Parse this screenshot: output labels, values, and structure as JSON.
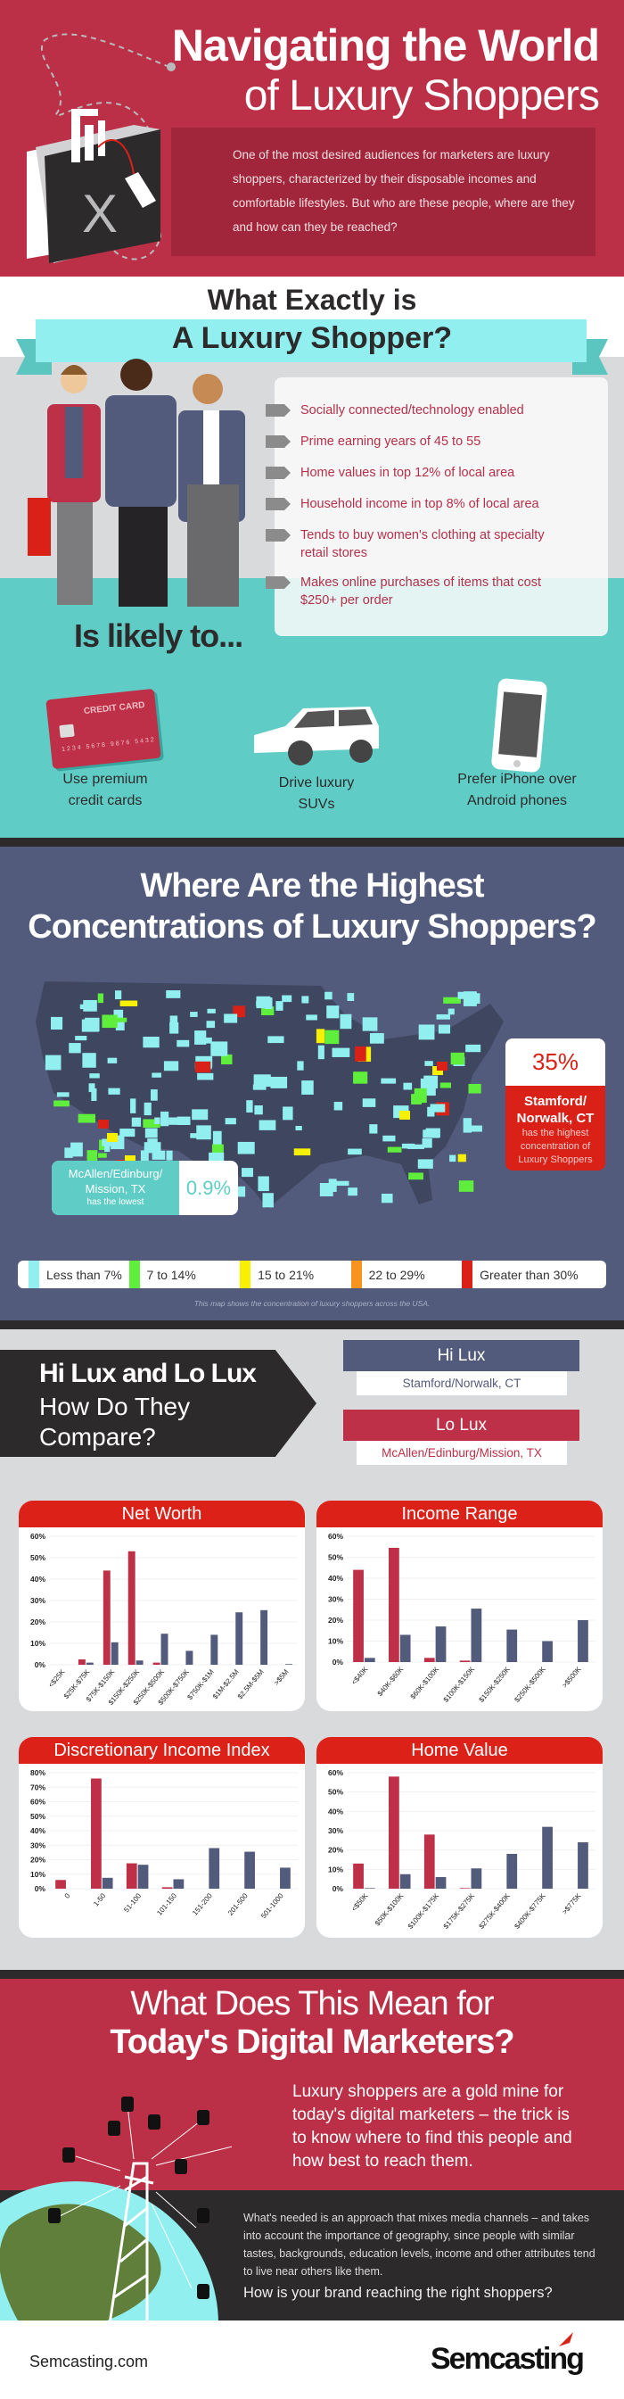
{
  "header": {
    "title_line1": "Navigating the World",
    "title_line2": "of Luxury Shoppers",
    "intro": "One of the most desired audiences for marketers are luxury shoppers, characterized by their disposable incomes and comfortable lifestyles. But who are these people, where are they and how can they be reached?",
    "bag_letter": "X"
  },
  "profile": {
    "title_line1": "What Exactly is",
    "title_line2": "A Luxury Shopper?",
    "traits": [
      "Socially connected/technology enabled",
      "Prime earning years of 45 to 55",
      "Home values in top 12% of local area",
      "Household income in top 8% of local area",
      "Tends to buy women's clothing at specialty retail stores",
      "Makes online purchases of items that cost $250+ per order"
    ],
    "likely_title": "Is likely to...",
    "card_label": "CREDIT CARD",
    "card_number": "1234 5678 9876 5432",
    "likely": [
      {
        "icon": "credit-card-icon",
        "label1": "Use premium",
        "label2": "credit cards"
      },
      {
        "icon": "suv-icon",
        "label1": "Drive luxury",
        "label2": "SUVs"
      },
      {
        "icon": "smartphone-icon",
        "label1": "Prefer iPhone over",
        "label2": "Android phones"
      }
    ]
  },
  "map": {
    "title_line1": "Where Are the Highest",
    "title_line2": "Concentrations of Luxury Shoppers?",
    "high": {
      "value": "35%",
      "city1": "Stamford/",
      "city2": "Norwalk, CT",
      "note1": "has the highest",
      "note2": "concentration of",
      "note3": "Luxury Shoppers"
    },
    "low": {
      "value": "0.9%",
      "city1": "McAllen/Edinburg/",
      "city2": "Mission, TX",
      "note": "has the lowest"
    },
    "legend": [
      {
        "label": "Less than 7%",
        "color": "#91efef"
      },
      {
        "label": "7 to 14%",
        "color": "#5fee3c"
      },
      {
        "label": "15 to 21%",
        "color": "#f7f000"
      },
      {
        "label": "22 to 29%",
        "color": "#f7941d"
      },
      {
        "label": "Greater than 30%",
        "color": "#da2118"
      }
    ],
    "caption": "This map shows the concentration of luxury shoppers across the USA."
  },
  "compare": {
    "title_line1": "Hi Lux and Lo Lux",
    "title_line2": "How Do They",
    "title_line3": "Compare?",
    "hi": {
      "label": "Hi Lux",
      "place": "Stamford/Norwalk, CT",
      "color": "#525b7c"
    },
    "lo": {
      "label": "Lo Lux",
      "place": "McAllen/Edinburg/Mission, TX",
      "color": "#bd3047"
    }
  },
  "chart_data": [
    {
      "type": "bar",
      "title": "Net Worth",
      "ylim": [
        0,
        60
      ],
      "yticks": [
        "0%",
        "10%",
        "20%",
        "30%",
        "40%",
        "50%",
        "60%"
      ],
      "categories": [
        "<$25K",
        "$25K-$75K",
        "$75K-$150K",
        "$150K-$250K",
        "$250K-$500K",
        "$500K-$750K",
        "$750K-$1M",
        "$1M-$2.5M",
        "$2.5M-$5M",
        ">$5M"
      ],
      "series": [
        {
          "name": "Lo Lux",
          "values": [
            0,
            2.5,
            44,
            53,
            1,
            0,
            0,
            0,
            0,
            0
          ]
        },
        {
          "name": "Hi Lux",
          "values": [
            0,
            1,
            10.5,
            2,
            14.5,
            6.5,
            14,
            24.5,
            25.5,
            0.3
          ]
        }
      ]
    },
    {
      "type": "bar",
      "title": "Income Range",
      "ylim": [
        0,
        60
      ],
      "yticks": [
        "0%",
        "10%",
        "20%",
        "30%",
        "40%",
        "50%",
        "60%"
      ],
      "categories": [
        "<$40K",
        "$40K-$60K",
        "$60K-$100K",
        "$100K-$150K",
        "$150K-$250K",
        "$250K-$500K",
        ">$500K"
      ],
      "series": [
        {
          "name": "Lo Lux",
          "values": [
            44,
            54.5,
            2,
            0.7,
            0,
            0,
            0
          ]
        },
        {
          "name": "Hi Lux",
          "values": [
            2,
            13,
            17,
            25.5,
            15.5,
            10,
            20
          ]
        }
      ]
    },
    {
      "type": "bar",
      "title": "Discretionary Income Index",
      "ylim": [
        0,
        80
      ],
      "yticks": [
        "0%",
        "10%",
        "20%",
        "30%",
        "40%",
        "50%",
        "60%",
        "70%",
        "80%"
      ],
      "categories": [
        "0",
        "1-50",
        "51-100",
        "101-150",
        "151-200",
        "201-500",
        "501-1000"
      ],
      "series": [
        {
          "name": "Lo Lux",
          "values": [
            6,
            76,
            17.5,
            1,
            0,
            0,
            0
          ]
        },
        {
          "name": "Hi Lux",
          "values": [
            0,
            7.5,
            16.5,
            6.5,
            28,
            25.5,
            14.5
          ]
        }
      ]
    },
    {
      "type": "bar",
      "title": "Home Value",
      "ylim": [
        0,
        60
      ],
      "yticks": [
        "0%",
        "10%",
        "20%",
        "30%",
        "40%",
        "50%",
        "60%"
      ],
      "categories": [
        "<$50K",
        "$50K-$100K",
        "$100K-$175K",
        "$175K-$275K",
        "$275K-$400K",
        "$400K-$775K",
        ">$775K"
      ],
      "series": [
        {
          "name": "Lo Lux",
          "values": [
            13,
            58,
            28,
            0.3,
            0,
            0,
            0
          ]
        },
        {
          "name": "Hi Lux",
          "values": [
            0.3,
            7.5,
            6,
            10.5,
            18,
            32,
            24
          ]
        }
      ]
    }
  ],
  "final": {
    "title_line1": "What Does This Mean for",
    "title_line2": "Today's Digital Marketers?",
    "lead": "Luxury shoppers are a gold mine for today's digital marketers – the trick is to know where to find this people and how best to reach them.",
    "body": "What's needed is an approach that mixes media channels – and takes into account the importance of geography, since people with similar tastes, backgrounds, education levels, income and other attributes tend to live near others like them.",
    "question": "How is your brand reaching the right shoppers?"
  },
  "footer": {
    "site": "Semcasting.com",
    "logo": "Semcasting"
  }
}
